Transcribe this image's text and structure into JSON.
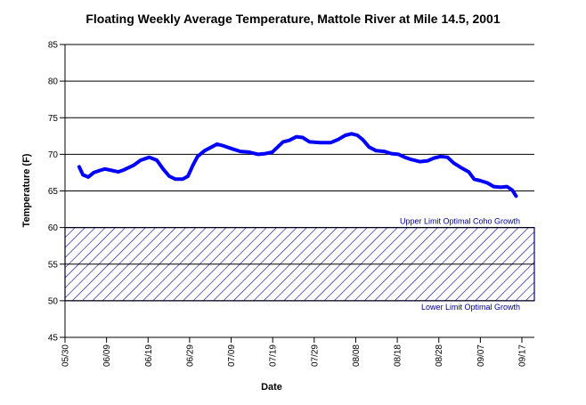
{
  "chart_data": {
    "type": "line",
    "title": "Floating Weekly Average Temperature, Mattole River at Mile 14.5, 2001",
    "x_label": "Date",
    "y_label": "Temperature (F)",
    "xlim": [
      0,
      113
    ],
    "xticks": [
      {
        "value": 0,
        "label": "05/30"
      },
      {
        "value": 10,
        "label": "06/09"
      },
      {
        "value": 20,
        "label": "06/19"
      },
      {
        "value": 30,
        "label": "06/29"
      },
      {
        "value": 40,
        "label": "07/09"
      },
      {
        "value": 50,
        "label": "07/19"
      },
      {
        "value": 60,
        "label": "07/29"
      },
      {
        "value": 70,
        "label": "08/08"
      },
      {
        "value": 80,
        "label": "08/18"
      },
      {
        "value": 90,
        "label": "08/28"
      },
      {
        "value": 100,
        "label": "09/07"
      },
      {
        "value": 110,
        "label": "09/17"
      }
    ],
    "ylim": [
      45,
      85
    ],
    "yticks": [
      45,
      50,
      55,
      60,
      65,
      70,
      75,
      80,
      85
    ],
    "grid": true,
    "band": {
      "ymin": 50,
      "ymax": 60,
      "upper_label": "Upper Limit Optimal Coho Growth",
      "lower_label": "Lower Limit Optimal Growth",
      "color": "#00008b"
    },
    "series": [
      {
        "color": "#0000ff",
        "x": [
          3.4,
          4.3,
          5.6,
          6.9,
          8.4,
          9.6,
          11.3,
          12.8,
          14.3,
          16.5,
          18.2,
          20.3,
          22.1,
          23.6,
          25.1,
          26.6,
          28.3,
          29.6,
          30.8,
          31.9,
          33.6,
          35.3,
          36.6,
          37.9,
          40.0,
          42.2,
          44.3,
          46.5,
          48.2,
          49.9,
          51.2,
          52.5,
          54.0,
          55.7,
          57.2,
          58.9,
          61.5,
          64.0,
          65.7,
          67.5,
          69.0,
          70.4,
          71.7,
          73.2,
          74.9,
          76.9,
          78.6,
          80.3,
          81.8,
          83.3,
          85.4,
          87.2,
          88.9,
          90.4,
          92.1,
          93.6,
          95.3,
          97.2,
          98.5,
          100.0,
          101.7,
          103.2,
          104.9,
          106.4,
          107.7,
          108.6
        ],
        "values": [
          68.3,
          67.2,
          66.9,
          67.5,
          67.8,
          68.0,
          67.8,
          67.6,
          67.9,
          68.5,
          69.2,
          69.6,
          69.2,
          68.0,
          67.0,
          66.6,
          66.6,
          67.0,
          68.5,
          69.7,
          70.5,
          71.0,
          71.4,
          71.2,
          70.8,
          70.4,
          70.3,
          70.0,
          70.1,
          70.3,
          71.0,
          71.7,
          71.9,
          72.4,
          72.3,
          71.7,
          71.6,
          71.6,
          72.0,
          72.6,
          72.8,
          72.6,
          72.0,
          71.0,
          70.5,
          70.4,
          70.1,
          70.0,
          69.6,
          69.3,
          69.0,
          69.1,
          69.5,
          69.7,
          69.6,
          68.8,
          68.2,
          67.6,
          66.6,
          66.4,
          66.1,
          65.6,
          65.5,
          65.6,
          65.1,
          64.3
        ]
      }
    ]
  }
}
